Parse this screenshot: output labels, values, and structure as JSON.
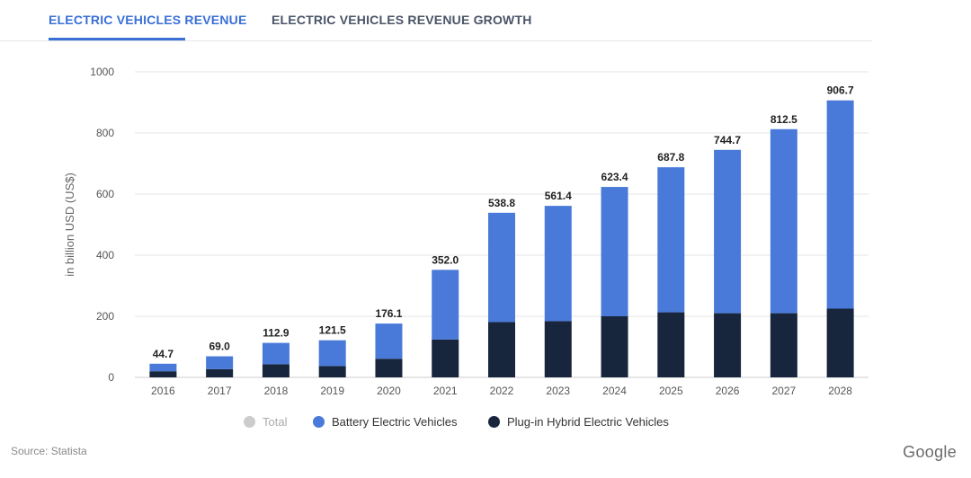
{
  "tabs": [
    {
      "label": "ELECTRIC VEHICLES REVENUE",
      "active": true
    },
    {
      "label": "ELECTRIC VEHICLES REVENUE GROWTH",
      "active": false
    }
  ],
  "source": "Source: Statista",
  "brand": "Google",
  "legend": [
    {
      "label": "Total",
      "color": "#cccccc",
      "muted": true
    },
    {
      "label": "Battery Electric Vehicles",
      "color": "#4a7ad9"
    },
    {
      "label": "Plug-in Hybrid Electric Vehicles",
      "color": "#17253d"
    }
  ],
  "chart_data": {
    "type": "bar",
    "stacked": true,
    "categories": [
      "2016",
      "2017",
      "2018",
      "2019",
      "2020",
      "2021",
      "2022",
      "2023",
      "2024",
      "2025",
      "2026",
      "2027",
      "2028"
    ],
    "totals": [
      44.7,
      69.0,
      112.9,
      121.5,
      176.1,
      352.0,
      538.8,
      561.4,
      623.4,
      687.8,
      744.7,
      812.5,
      906.7
    ],
    "total_labels": [
      "44.7",
      "69.0",
      "112.9",
      "121.5",
      "176.1",
      "352.0",
      "538.8",
      "561.4",
      "623.4",
      "687.8",
      "744.7",
      "812.5",
      "906.7"
    ],
    "series": [
      {
        "name": "Plug-in Hybrid Electric Vehicles",
        "color": "#17253d",
        "values": [
          20,
          27,
          43,
          37,
          61,
          124,
          181,
          184,
          200,
          213,
          210,
          210,
          225
        ]
      },
      {
        "name": "Battery Electric Vehicles",
        "color": "#4a7ad9",
        "values": [
          24.7,
          42.0,
          69.9,
          84.5,
          115.1,
          228.0,
          357.8,
          377.4,
          423.4,
          474.8,
          534.7,
          602.5,
          681.7
        ]
      }
    ],
    "ylabel": "in billion USD (US$)",
    "ylim": [
      0,
      1000
    ],
    "yticks": [
      0,
      200,
      400,
      600,
      800,
      1000
    ],
    "grid": true,
    "legend_position": "bottom"
  }
}
